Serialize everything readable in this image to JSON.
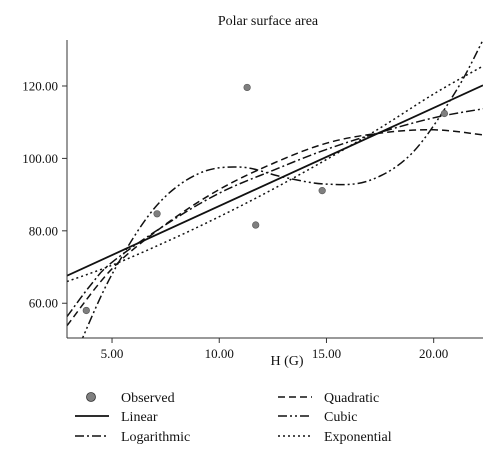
{
  "chart_data": {
    "type": "scatter",
    "title": "Polar surface area",
    "xlabel": "H (G)",
    "ylabel": "",
    "xlim": [
      2.9,
      22.3
    ],
    "ylim": [
      50.4,
      132.7
    ],
    "x_ticks": [
      5,
      10,
      15,
      20
    ],
    "x_tick_labels": [
      "5.00",
      "10.00",
      "15.00",
      "20.00"
    ],
    "y_ticks": [
      60,
      80,
      100,
      120
    ],
    "y_tick_labels": [
      "60.00",
      "80.00",
      "100.00",
      "120.00"
    ],
    "grid": false,
    "legend_position": "bottom",
    "observed": {
      "name": "Observed",
      "color": "#7f7f7f",
      "points": [
        {
          "x": 3.8,
          "y": 58.0
        },
        {
          "x": 7.1,
          "y": 84.7
        },
        {
          "x": 11.3,
          "y": 119.6
        },
        {
          "x": 11.7,
          "y": 81.6
        },
        {
          "x": 14.8,
          "y": 91.1
        },
        {
          "x": 20.5,
          "y": 112.4
        }
      ]
    },
    "series": [
      {
        "name": "Linear",
        "style": "solid",
        "x": [
          2.9,
          22.3
        ],
        "y": [
          67.6,
          120.2
        ]
      },
      {
        "name": "Quadratic",
        "style": "dashed",
        "x": [
          2.9,
          5.0,
          7.5,
          10.0,
          12.5,
          15.0,
          17.5,
          20.0,
          22.3
        ],
        "y": [
          53.8,
          69.5,
          81.8,
          91.4,
          98.6,
          104.2,
          107.0,
          107.9,
          106.5
        ]
      },
      {
        "name": "Logarithmic",
        "style": "dashdot",
        "x": [
          2.9,
          4.0,
          5.0,
          7.5,
          10.0,
          12.5,
          15.0,
          17.5,
          20.0,
          22.3
        ],
        "y": [
          56.3,
          65.0,
          71.3,
          81.7,
          90.4,
          96.7,
          102.5,
          107.2,
          111.2,
          113.7
        ]
      },
      {
        "name": "Cubic",
        "style": "dashdotdot",
        "x": [
          3.5,
          5.0,
          7.0,
          9.0,
          11.0,
          13.0,
          15.0,
          17.0,
          19.0,
          21.0,
          22.3
        ],
        "y": [
          48.7,
          68.0,
          86.4,
          95.7,
          97.6,
          94.8,
          92.9,
          93.9,
          101.5,
          118.2,
          132.7
        ]
      },
      {
        "name": "Exponential",
        "style": "dotted",
        "x": [
          2.9,
          5.0,
          7.5,
          10.0,
          12.5,
          15.0,
          17.5,
          20.0,
          22.3
        ],
        "y": [
          66.0,
          70.5,
          76.9,
          83.9,
          91.5,
          99.7,
          108.4,
          117.8,
          125.5
        ]
      }
    ],
    "legend": [
      {
        "key": "observed",
        "label": "Observed"
      },
      {
        "key": "linear",
        "label": "Linear"
      },
      {
        "key": "logarithmic",
        "label": "Logarithmic"
      },
      {
        "key": "quadratic",
        "label": "Quadratic"
      },
      {
        "key": "cubic",
        "label": "Cubic"
      },
      {
        "key": "exponential",
        "label": "Exponential"
      }
    ]
  }
}
